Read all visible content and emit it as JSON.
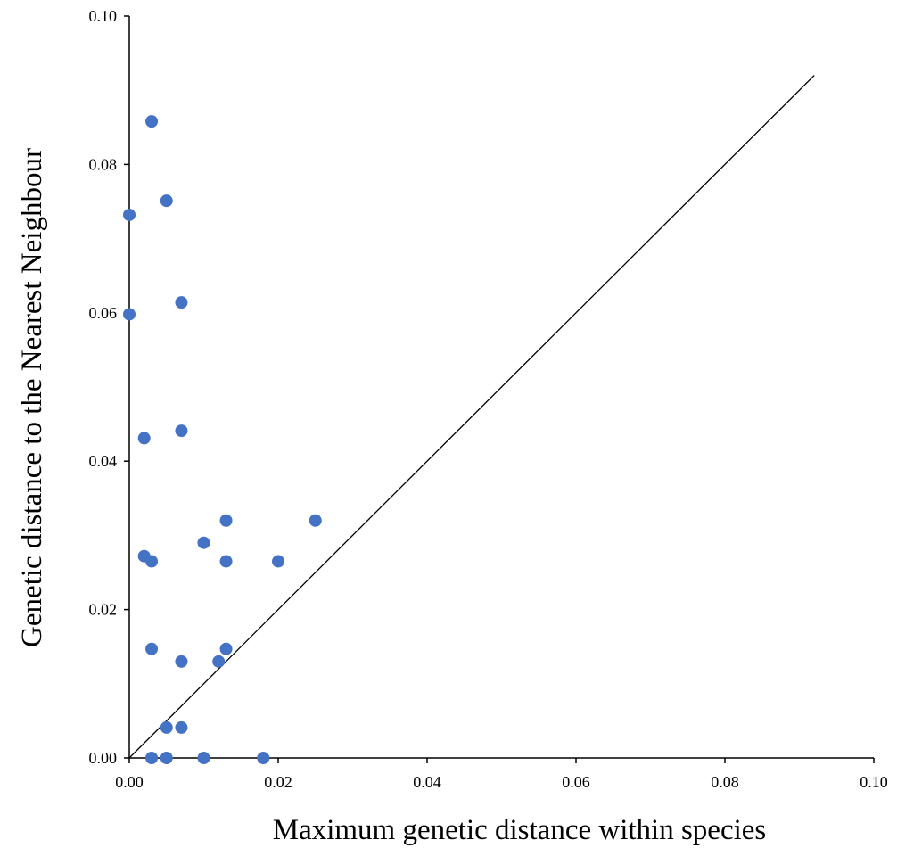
{
  "chart_data": {
    "type": "scatter",
    "title": "",
    "xlabel": "Maximum genetic distance within species",
    "ylabel": "Genetic distance to the Nearest Neighbour",
    "xlim": [
      0,
      0.1
    ],
    "ylim": [
      0,
      0.1
    ],
    "x_ticks": [
      "0.00",
      "0.02",
      "0.04",
      "0.06",
      "0.08",
      "0.10"
    ],
    "y_ticks": [
      "0.00",
      "0.02",
      "0.04",
      "0.06",
      "0.08",
      "0.10"
    ],
    "grid": false,
    "legend": "none",
    "marker_color": "#4472C4",
    "reference_line": {
      "from": [
        0,
        0
      ],
      "to": [
        0.092,
        0.092
      ],
      "color": "#000000"
    },
    "series": [
      {
        "points": [
          [
            0.003,
            0.0858
          ],
          [
            0.005,
            0.0751
          ],
          [
            0.0,
            0.0732
          ],
          [
            0.007,
            0.0614
          ],
          [
            0.0,
            0.0598
          ],
          [
            0.007,
            0.0441
          ],
          [
            0.002,
            0.0431
          ],
          [
            0.013,
            0.032
          ],
          [
            0.025,
            0.032
          ],
          [
            0.01,
            0.029
          ],
          [
            0.002,
            0.0272
          ],
          [
            0.003,
            0.0265
          ],
          [
            0.013,
            0.0265
          ],
          [
            0.02,
            0.0265
          ],
          [
            0.003,
            0.0147
          ],
          [
            0.013,
            0.0147
          ],
          [
            0.007,
            0.013
          ],
          [
            0.012,
            0.013
          ],
          [
            0.005,
            0.0041
          ],
          [
            0.007,
            0.0041
          ],
          [
            0.003,
            0.0
          ],
          [
            0.005,
            0.0
          ],
          [
            0.01,
            0.0
          ],
          [
            0.018,
            0.0
          ]
        ]
      }
    ]
  }
}
